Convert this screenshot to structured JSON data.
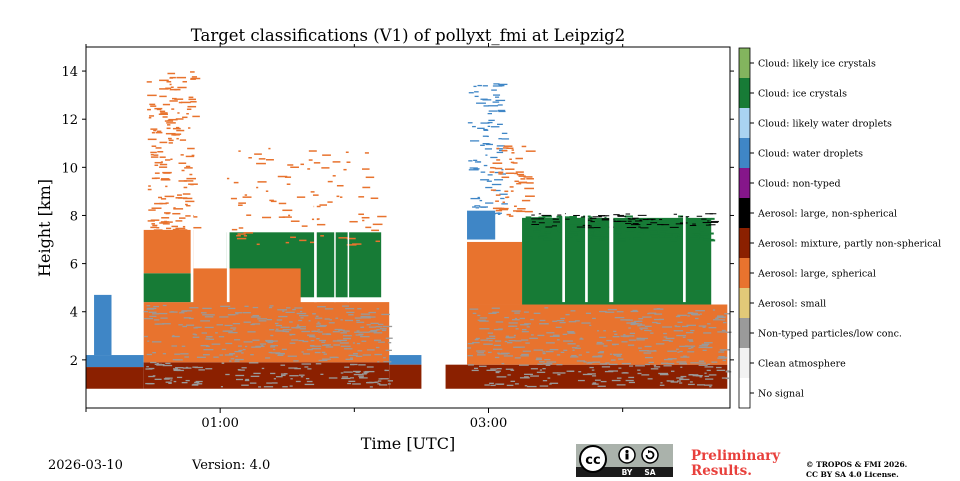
{
  "chart_data": {
    "type": "heatmap",
    "title": "Target classifications (V1) of pollyxt_fmi at Leipzig2",
    "xlabel": "Time [UTC]",
    "ylabel": "Height [km]",
    "xlim": [
      0,
      4.8
    ],
    "ylim": [
      0,
      15
    ],
    "x_ticks": [
      {
        "value": 1.0,
        "label": "01:00"
      },
      {
        "value": 3.0,
        "label": "03:00"
      }
    ],
    "x_minor_ticks": [
      0,
      2.0,
      4.0
    ],
    "y_ticks": [
      {
        "value": 2,
        "label": "2"
      },
      {
        "value": 4,
        "label": "4"
      },
      {
        "value": 6,
        "label": "6"
      },
      {
        "value": 8,
        "label": "8"
      },
      {
        "value": 10,
        "label": "10"
      },
      {
        "value": 12,
        "label": "12"
      },
      {
        "value": 14,
        "label": "14"
      }
    ],
    "legend": [
      {
        "label": "No signal",
        "color": "#ffffff"
      },
      {
        "label": "Clean atmosphere",
        "color": "#f2f2f2"
      },
      {
        "label": "Non-typed particles/low conc.",
        "color": "#9a9a9a"
      },
      {
        "label": "Aerosol: small",
        "color": "#e2c978"
      },
      {
        "label": "Aerosol: large, spherical",
        "color": "#e8732e"
      },
      {
        "label": "Aerosol: mixture, partly non-spherical",
        "color": "#8b2000"
      },
      {
        "label": "Aerosol: large, non-spherical",
        "color": "#000000"
      },
      {
        "label": "Cloud: non-typed",
        "color": "#85168a"
      },
      {
        "label": "Cloud: water droplets",
        "color": "#3f86c6"
      },
      {
        "label": "Cloud: likely water droplets",
        "color": "#a9d3f2"
      },
      {
        "label": "Cloud: ice crystals",
        "color": "#177b36"
      },
      {
        "label": "Cloud: likely ice crystals",
        "color": "#83b45e"
      }
    ],
    "regions": [
      {
        "class": "Cloud: water droplets",
        "x": [
          0.0,
          0.43
        ],
        "y": [
          1.7,
          2.2
        ]
      },
      {
        "class": "Aerosol: mixture, partly non-spherical",
        "x": [
          0.0,
          0.43
        ],
        "y": [
          0.8,
          1.7
        ]
      },
      {
        "class": "Cloud: water droplets",
        "x": [
          0.06,
          0.19
        ],
        "y": [
          2.2,
          4.7
        ]
      },
      {
        "class": "Aerosol: mixture, partly non-spherical",
        "x": [
          0.43,
          2.26
        ],
        "y": [
          0.8,
          1.9
        ]
      },
      {
        "class": "Aerosol: large, spherical",
        "x": [
          0.43,
          2.26
        ],
        "y": [
          1.9,
          4.4
        ]
      },
      {
        "class": "Cloud: ice crystals",
        "x": [
          0.43,
          0.8
        ],
        "y": [
          4.4,
          5.6
        ]
      },
      {
        "class": "Aerosol: large, spherical",
        "x": [
          0.43,
          0.8
        ],
        "y": [
          5.6,
          7.4
        ]
      },
      {
        "class": "Cloud: ice crystals",
        "x": [
          1.05,
          2.2
        ],
        "y": [
          4.6,
          7.3
        ]
      },
      {
        "class": "Aerosol: large, spherical",
        "x": [
          0.8,
          1.6
        ],
        "y": [
          4.2,
          5.8
        ]
      },
      {
        "class": "Cloud: water droplets",
        "x": [
          2.26,
          2.5
        ],
        "y": [
          1.8,
          2.2
        ]
      },
      {
        "class": "Aerosol: mixture, partly non-spherical",
        "x": [
          2.26,
          2.5
        ],
        "y": [
          0.8,
          1.8
        ]
      },
      {
        "class": "Aerosol: mixture, partly non-spherical",
        "x": [
          2.68,
          4.78
        ],
        "y": [
          0.8,
          1.8
        ]
      },
      {
        "class": "Aerosol: large, spherical",
        "x": [
          2.84,
          4.78
        ],
        "y": [
          1.8,
          4.3
        ]
      },
      {
        "class": "Cloud: ice crystals",
        "x": [
          3.25,
          4.66
        ],
        "y": [
          4.3,
          7.9
        ]
      },
      {
        "class": "Aerosol: large, spherical",
        "x": [
          2.84,
          3.25
        ],
        "y": [
          4.3,
          6.9
        ]
      },
      {
        "class": "Cloud: water droplets",
        "x": [
          2.84,
          3.05
        ],
        "y": [
          7.0,
          8.2
        ]
      }
    ],
    "footer": {
      "date": "2026-03-10",
      "version": "Version: 4.0",
      "prelim_line1": "Preliminary",
      "prelim_line2": "Results.",
      "copyright_line1": "© TROPOS & FMI 2026.",
      "copyright_line2": "CC BY SA 4.0 License.",
      "license_badge": [
        "cc",
        "BY",
        "SA"
      ]
    }
  }
}
